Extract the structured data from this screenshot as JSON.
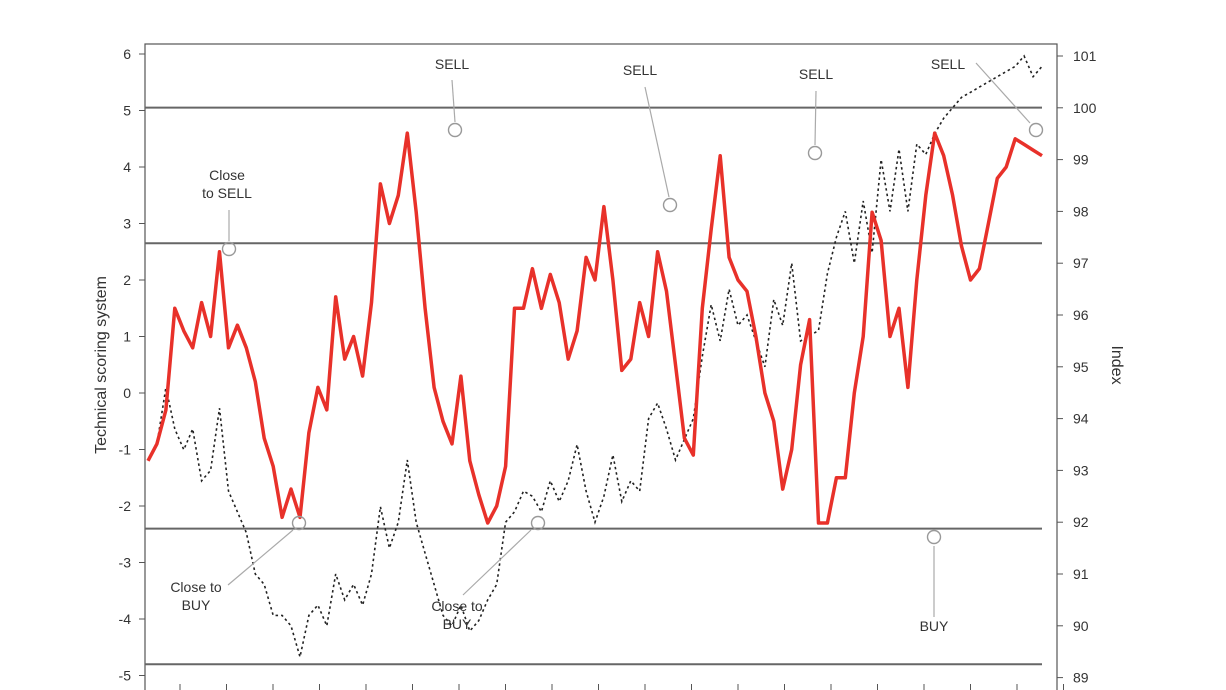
{
  "chart_data": {
    "type": "line",
    "ylabel_left": "Technical scoring system",
    "ylabel_right": "Index",
    "y_left": {
      "min": -5,
      "max": 6,
      "ticks": [
        6,
        5,
        4,
        3,
        2,
        1,
        0,
        -1,
        -2,
        -3,
        -4,
        -5
      ],
      "tick_labels": [
        "6",
        "5",
        "4",
        "3",
        "2",
        "1",
        "0",
        "-1",
        "-2",
        "-3",
        "-4",
        "-5"
      ]
    },
    "y_right": {
      "min": 89,
      "max": 101,
      "ticks": [
        101,
        100,
        99,
        98,
        97,
        96,
        95,
        94,
        93,
        92,
        91,
        90,
        89
      ],
      "tick_labels": [
        "101",
        "100",
        "99",
        "98",
        "97",
        "96",
        "95",
        "94",
        "93",
        "92",
        "91",
        "90",
        "89"
      ]
    },
    "x_range": [
      0,
      100
    ],
    "grid": false,
    "threshold_lines_left": [
      5.05,
      2.65,
      -2.4,
      -4.8
    ],
    "colors": {
      "score": "#e8312a",
      "index": "#222222",
      "threshold": "#666666",
      "marker": "#999999"
    },
    "series": [
      {
        "axis": "left",
        "style": "solid",
        "x": [
          0,
          1,
          2,
          3,
          4,
          5,
          6,
          7,
          8,
          9,
          10,
          11,
          12,
          13,
          14,
          15,
          16,
          17,
          18,
          19,
          20,
          21,
          22,
          23,
          24,
          25,
          26,
          27,
          28,
          29,
          30,
          31,
          32,
          33,
          34,
          35,
          36,
          37,
          38,
          39,
          40,
          41,
          42,
          43,
          44,
          45,
          46,
          47,
          48,
          49,
          50,
          51,
          52,
          53,
          54,
          55,
          56,
          57,
          58,
          59,
          60,
          61,
          62,
          63,
          64,
          65,
          66,
          67,
          68,
          69,
          70,
          71,
          72,
          73,
          74,
          75,
          76,
          77,
          78,
          79,
          80,
          81,
          82,
          83,
          84,
          85,
          86,
          87,
          88,
          89,
          90,
          91,
          92,
          93,
          94,
          95,
          96,
          97,
          98,
          99,
          100
        ],
        "y": [
          -1.2,
          -0.9,
          -0.3,
          1.5,
          1.1,
          0.8,
          1.6,
          1.0,
          2.5,
          0.8,
          1.2,
          0.8,
          0.2,
          -0.8,
          -1.3,
          -2.2,
          -1.7,
          -2.2,
          -0.7,
          0.1,
          -0.3,
          1.7,
          0.6,
          1.0,
          0.3,
          1.6,
          3.7,
          3.0,
          3.5,
          4.6,
          3.2,
          1.5,
          0.1,
          -0.5,
          -0.9,
          0.3,
          -1.2,
          -1.8,
          -2.3,
          -2.0,
          -1.3,
          1.5,
          1.5,
          2.2,
          1.5,
          2.1,
          1.6,
          0.6,
          1.1,
          2.4,
          2.0,
          3.3,
          2.0,
          0.4,
          0.6,
          1.6,
          1.0,
          2.5,
          1.8,
          0.5,
          -0.8,
          -1.1,
          1.5,
          2.9,
          4.2,
          2.4,
          2.0,
          1.8,
          1.0,
          0.0,
          -0.5,
          -1.7,
          -1.0,
          0.5,
          1.3,
          -2.3,
          -2.3,
          -1.5,
          -1.5,
          0.0,
          1.0,
          3.2,
          2.7,
          1.0,
          1.5,
          0.1,
          2.0,
          3.5,
          4.6,
          4.2,
          3.5,
          2.6,
          2.0,
          2.2,
          3.0,
          3.8,
          4.0,
          4.5,
          4.4,
          4.3,
          4.2
        ]
      },
      {
        "axis": "right",
        "style": "dotted",
        "x": [
          0,
          1,
          2,
          3,
          4,
          5,
          6,
          7,
          8,
          9,
          10,
          11,
          12,
          13,
          14,
          15,
          16,
          17,
          18,
          19,
          20,
          21,
          22,
          23,
          24,
          25,
          26,
          27,
          28,
          29,
          30,
          31,
          32,
          33,
          34,
          35,
          36,
          37,
          38,
          39,
          40,
          41,
          42,
          43,
          44,
          45,
          46,
          47,
          48,
          49,
          50,
          51,
          52,
          53,
          54,
          55,
          56,
          57,
          58,
          59,
          60,
          61,
          62,
          63,
          64,
          65,
          66,
          67,
          68,
          69,
          70,
          71,
          72,
          73,
          74,
          75,
          76,
          77,
          78,
          79,
          80,
          81,
          82,
          83,
          84,
          85,
          86,
          87,
          88,
          89,
          90,
          91,
          92,
          93,
          94,
          95,
          96,
          97,
          98,
          99,
          100
        ],
        "y": [
          93.2,
          93.5,
          94.6,
          93.8,
          93.4,
          93.8,
          92.8,
          93.0,
          94.2,
          92.6,
          92.2,
          91.8,
          91.0,
          90.8,
          90.2,
          90.2,
          90.0,
          89.4,
          90.2,
          90.4,
          90.0,
          91.0,
          90.5,
          90.8,
          90.4,
          91.0,
          92.3,
          91.5,
          92.0,
          93.2,
          92.0,
          91.4,
          90.8,
          90.2,
          90.0,
          90.4,
          89.9,
          90.1,
          90.5,
          90.8,
          92.0,
          92.2,
          92.6,
          92.5,
          92.2,
          92.8,
          92.4,
          92.8,
          93.5,
          92.6,
          92.0,
          92.5,
          93.3,
          92.4,
          92.8,
          92.6,
          94.0,
          94.3,
          93.8,
          93.2,
          93.6,
          94.0,
          95.2,
          96.2,
          95.5,
          96.5,
          95.8,
          96.0,
          95.5,
          95.0,
          96.3,
          95.8,
          97.0,
          95.5,
          95.6,
          95.7,
          96.8,
          97.5,
          98.0,
          97.0,
          98.2,
          97.2,
          99.0,
          98.0,
          99.2,
          98.0,
          99.3,
          99.1,
          99.5,
          99.8,
          100.0,
          100.2,
          100.3,
          100.4,
          100.5,
          100.6,
          100.7,
          100.8,
          101.0,
          100.6,
          100.8
        ]
      }
    ],
    "annotations": [
      {
        "lines": [
          "Close",
          "to SELL"
        ]
      },
      {
        "lines": [
          "SELL"
        ]
      },
      {
        "lines": [
          "SELL"
        ]
      },
      {
        "lines": [
          "SELL"
        ]
      },
      {
        "lines": [
          "SELL"
        ]
      },
      {
        "lines": [
          "Close to",
          "BUY"
        ]
      },
      {
        "lines": [
          "Close to",
          "BUY"
        ]
      },
      {
        "lines": [
          "BUY"
        ]
      }
    ]
  }
}
